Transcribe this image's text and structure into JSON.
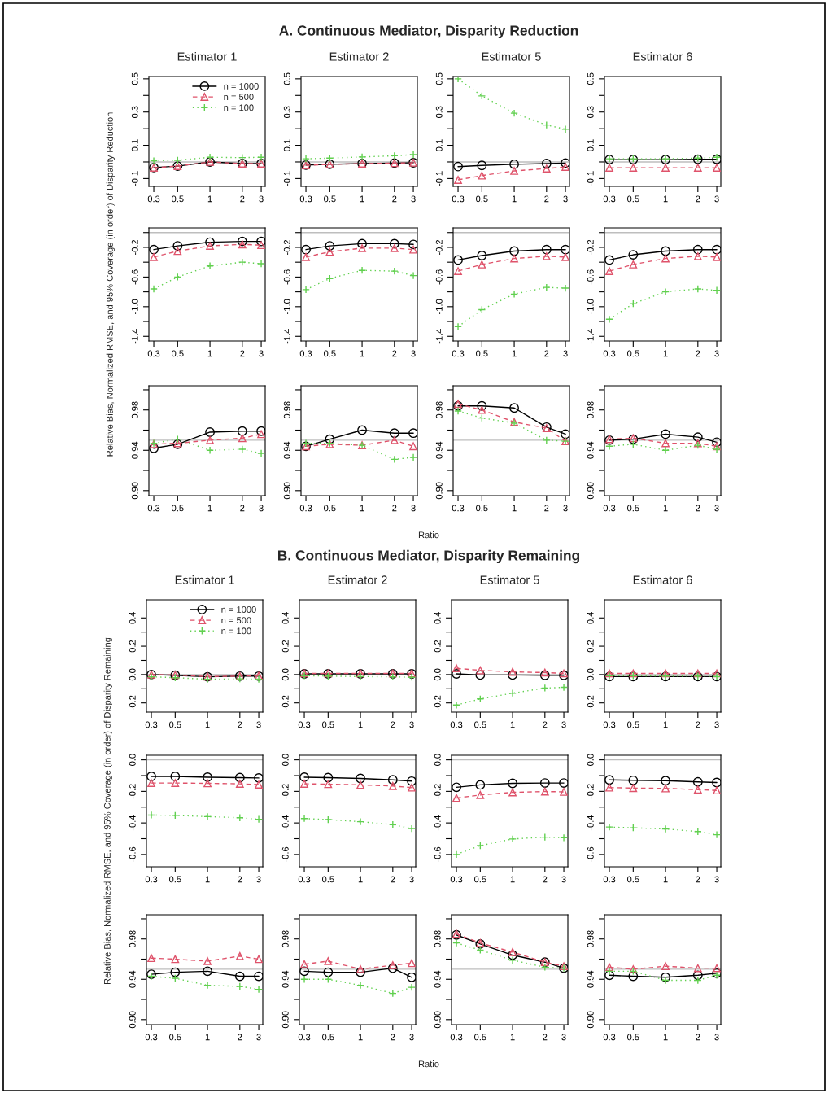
{
  "chart_data": [
    {
      "type": "line",
      "title": "Estimator 1",
      "annotations": [
        "A. Continuous Mediator, Disparity Reduction"
      ],
      "legend": "top right",
      "log": "x",
      "x": [
        0.3,
        0.5,
        1,
        2,
        3
      ],
      "xlim": [
        0.27,
        3.27
      ],
      "xticks": [
        0.3,
        0.5,
        1,
        2,
        3
      ],
      "ylim": [
        -0.147,
        0.514
      ],
      "yticks": [
        -0.1,
        {
          "value": 0,
          "label": null
        },
        0.1,
        {
          "value": 0.2,
          "label": null
        },
        0.3,
        {
          "value": 0.4,
          "label": null
        },
        0.5
      ],
      "ref_lines": [
        {
          "axis": "y",
          "value": 0,
          "color": "#bebebe"
        }
      ],
      "series": [
        {
          "name": "n = 1000",
          "color": "#000000",
          "marker": "circle",
          "line_style": "solid",
          "values": [
            -0.034,
            -0.025,
            0,
            -0.01,
            -0.01
          ]
        },
        {
          "name": "n = 500",
          "color": "#df536b",
          "marker": "triangle",
          "line_style": "dashed",
          "values": [
            -0.035,
            -0.025,
            0,
            -0.01,
            -0.01
          ]
        },
        {
          "name": "n = 100",
          "color": "#61d04f",
          "marker": "cross",
          "line_style": "dotted",
          "values": [
            0.007,
            0.01,
            0.028,
            0.026,
            0.028
          ]
        }
      ]
    },
    {
      "type": "line",
      "title": "Estimator 2",
      "log": "x",
      "x": [
        0.3,
        0.5,
        1,
        2,
        3
      ],
      "xlim": [
        0.27,
        3.27
      ],
      "xticks": [
        0.3,
        0.5,
        1,
        2,
        3
      ],
      "ylim": [
        -0.147,
        0.514
      ],
      "yticks": [
        -0.1,
        {
          "value": 0,
          "label": null
        },
        0.1,
        {
          "value": 0.2,
          "label": null
        },
        0.3,
        {
          "value": 0.4,
          "label": null
        },
        0.5
      ],
      "ref_lines": [
        {
          "axis": "y",
          "value": 0,
          "color": "#bebebe"
        }
      ],
      "series": [
        {
          "color": "#000000",
          "marker": "circle",
          "line_style": "solid",
          "values": [
            -0.019,
            -0.014,
            -0.01,
            -0.007,
            -0.005
          ]
        },
        {
          "color": "#df536b",
          "marker": "triangle",
          "line_style": "dashed",
          "values": [
            -0.02,
            -0.015,
            -0.01,
            -0.007,
            -0.005
          ]
        },
        {
          "color": "#61d04f",
          "marker": "cross",
          "line_style": "dotted",
          "values": [
            0.019,
            0.023,
            0.03,
            0.037,
            0.044
          ]
        }
      ]
    },
    {
      "type": "line",
      "title": "Estimator 5",
      "log": "x",
      "x": [
        0.3,
        0.5,
        1,
        2,
        3
      ],
      "xlim": [
        0.27,
        3.27
      ],
      "xticks": [
        0.3,
        0.5,
        1,
        2,
        3
      ],
      "ylim": [
        -0.147,
        0.514
      ],
      "yticks": [
        -0.1,
        {
          "value": 0,
          "label": null
        },
        0.1,
        {
          "value": 0.2,
          "label": null
        },
        0.3,
        {
          "value": 0.4,
          "label": null
        },
        0.5
      ],
      "ref_lines": [
        {
          "axis": "y",
          "value": 0,
          "color": "#bebebe"
        }
      ],
      "series": [
        {
          "color": "#000000",
          "marker": "circle",
          "line_style": "solid",
          "values": [
            -0.028,
            -0.021,
            -0.014,
            -0.01,
            -0.007
          ]
        },
        {
          "color": "#df536b",
          "marker": "triangle",
          "line_style": "dashed",
          "values": [
            -0.108,
            -0.082,
            -0.054,
            -0.04,
            -0.03
          ]
        },
        {
          "color": "#61d04f",
          "marker": "cross",
          "line_style": "dotted",
          "values": [
            0.5,
            0.397,
            0.293,
            0.222,
            0.197
          ]
        }
      ]
    },
    {
      "type": "line",
      "title": "Estimator 6",
      "log": "x",
      "x": [
        0.3,
        0.5,
        1,
        2,
        3
      ],
      "xlim": [
        0.27,
        3.27
      ],
      "xticks": [
        0.3,
        0.5,
        1,
        2,
        3
      ],
      "ylim": [
        -0.147,
        0.514
      ],
      "yticks": [
        -0.1,
        {
          "value": 0,
          "label": null
        },
        0.1,
        {
          "value": 0.2,
          "label": null
        },
        0.3,
        {
          "value": 0.4,
          "label": null
        },
        0.5
      ],
      "ref_lines": [
        {
          "axis": "y",
          "value": 0,
          "color": "#bebebe"
        }
      ],
      "series": [
        {
          "color": "#000000",
          "marker": "circle",
          "line_style": "solid",
          "values": [
            0.014,
            0.014,
            0.014,
            0.016,
            0.016
          ]
        },
        {
          "color": "#df536b",
          "marker": "triangle",
          "line_style": "dashed",
          "values": [
            -0.035,
            -0.035,
            -0.035,
            -0.035,
            -0.035
          ]
        },
        {
          "color": "#61d04f",
          "marker": "cross",
          "line_style": "dotted",
          "values": [
            0.019,
            0.019,
            0.019,
            0.023,
            0.028
          ]
        }
      ]
    },
    {
      "type": "line",
      "ylabel": "Relative Bias, Normalized RMSE, and 95% Coverage (in order) of Disparity Reduction",
      "log": "x",
      "x": [
        0.3,
        0.5,
        1,
        2,
        3
      ],
      "xlim": [
        0.27,
        3.27
      ],
      "xticks": [
        0.3,
        0.5,
        1,
        2,
        3
      ],
      "ylim": [
        -1.463,
        0.063
      ],
      "yticks": [
        -1.4,
        {
          "value": -1.2,
          "label": null
        },
        {
          "value": -1.0,
          "label": "-1.0"
        },
        {
          "value": -0.8,
          "label": null
        },
        -0.6,
        {
          "value": -0.4,
          "label": null
        },
        -0.2,
        {
          "value": 0,
          "label": null
        }
      ],
      "ref_lines": [
        {
          "axis": "y",
          "value": 0,
          "color": "#bebebe"
        }
      ],
      "series": [
        {
          "color": "#000000",
          "marker": "circle",
          "line_style": "solid",
          "values": [
            -0.23,
            -0.18,
            -0.13,
            -0.12,
            -0.12
          ]
        },
        {
          "color": "#df536b",
          "marker": "triangle",
          "line_style": "dashed",
          "values": [
            -0.33,
            -0.25,
            -0.18,
            -0.16,
            -0.17
          ]
        },
        {
          "color": "#61d04f",
          "marker": "cross",
          "line_style": "dotted",
          "values": [
            -0.76,
            -0.6,
            -0.45,
            -0.4,
            -0.42
          ]
        }
      ]
    },
    {
      "type": "line",
      "log": "x",
      "x": [
        0.3,
        0.5,
        1,
        2,
        3
      ],
      "xlim": [
        0.27,
        3.27
      ],
      "xticks": [
        0.3,
        0.5,
        1,
        2,
        3
      ],
      "ylim": [
        -1.463,
        0.063
      ],
      "yticks": [
        -1.4,
        {
          "value": -1.2,
          "label": null
        },
        {
          "value": -1.0,
          "label": "-1.0"
        },
        {
          "value": -0.8,
          "label": null
        },
        -0.6,
        {
          "value": -0.4,
          "label": null
        },
        -0.2,
        {
          "value": 0,
          "label": null
        }
      ],
      "ref_lines": [
        {
          "axis": "y",
          "value": 0,
          "color": "#bebebe"
        }
      ],
      "series": [
        {
          "color": "#000000",
          "marker": "circle",
          "line_style": "solid",
          "values": [
            -0.23,
            -0.18,
            -0.15,
            -0.15,
            -0.16
          ]
        },
        {
          "color": "#df536b",
          "marker": "triangle",
          "line_style": "dashed",
          "values": [
            -0.33,
            -0.26,
            -0.21,
            -0.21,
            -0.23
          ]
        },
        {
          "color": "#61d04f",
          "marker": "cross",
          "line_style": "dotted",
          "values": [
            -0.77,
            -0.62,
            -0.51,
            -0.52,
            -0.58
          ]
        }
      ]
    },
    {
      "type": "line",
      "log": "x",
      "x": [
        0.3,
        0.5,
        1,
        2,
        3
      ],
      "xlim": [
        0.27,
        3.27
      ],
      "xticks": [
        0.3,
        0.5,
        1,
        2,
        3
      ],
      "ylim": [
        -1.463,
        0.063
      ],
      "yticks": [
        -1.4,
        {
          "value": -1.2,
          "label": null
        },
        {
          "value": -1.0,
          "label": "-1.0"
        },
        {
          "value": -0.8,
          "label": null
        },
        -0.6,
        {
          "value": -0.4,
          "label": null
        },
        -0.2,
        {
          "value": 0,
          "label": null
        }
      ],
      "ref_lines": [
        {
          "axis": "y",
          "value": 0,
          "color": "#bebebe"
        }
      ],
      "series": [
        {
          "color": "#000000",
          "marker": "circle",
          "line_style": "solid",
          "values": [
            -0.37,
            -0.31,
            -0.25,
            -0.23,
            -0.23
          ]
        },
        {
          "color": "#df536b",
          "marker": "triangle",
          "line_style": "dashed",
          "values": [
            -0.52,
            -0.43,
            -0.35,
            -0.32,
            -0.33
          ]
        },
        {
          "color": "#61d04f",
          "marker": "cross",
          "line_style": "dotted",
          "values": [
            -1.27,
            -1.04,
            -0.83,
            -0.74,
            -0.75
          ]
        }
      ]
    },
    {
      "type": "line",
      "log": "x",
      "x": [
        0.3,
        0.5,
        1,
        2,
        3
      ],
      "xlim": [
        0.27,
        3.27
      ],
      "xticks": [
        0.3,
        0.5,
        1,
        2,
        3
      ],
      "ylim": [
        -1.463,
        0.063
      ],
      "yticks": [
        -1.4,
        {
          "value": -1.2,
          "label": null
        },
        {
          "value": -1.0,
          "label": "-1.0"
        },
        {
          "value": -0.8,
          "label": null
        },
        -0.6,
        {
          "value": -0.4,
          "label": null
        },
        -0.2,
        {
          "value": 0,
          "label": null
        }
      ],
      "ref_lines": [
        {
          "axis": "y",
          "value": 0,
          "color": "#bebebe"
        }
      ],
      "series": [
        {
          "color": "#000000",
          "marker": "circle",
          "line_style": "solid",
          "values": [
            -0.37,
            -0.3,
            -0.25,
            -0.23,
            -0.23
          ]
        },
        {
          "color": "#df536b",
          "marker": "triangle",
          "line_style": "dashed",
          "values": [
            -0.52,
            -0.43,
            -0.35,
            -0.32,
            -0.33
          ]
        },
        {
          "color": "#61d04f",
          "marker": "cross",
          "line_style": "dotted",
          "values": [
            -1.17,
            -0.96,
            -0.8,
            -0.76,
            -0.78
          ]
        }
      ]
    },
    {
      "type": "line",
      "log": "x",
      "x": [
        0.3,
        0.5,
        1,
        2,
        3
      ],
      "xlim": [
        0.27,
        3.27
      ],
      "xticks": [
        0.3,
        0.5,
        1,
        2,
        3
      ],
      "ylim": [
        0.895,
        1.004
      ],
      "yticks": [
        {
          "value": 0.9,
          "label": "0.90"
        },
        {
          "value": 0.92,
          "label": null
        },
        0.94,
        {
          "value": 0.96,
          "label": null
        },
        0.98,
        {
          "value": 1.0,
          "label": null
        }
      ],
      "ref_lines": [
        {
          "axis": "y",
          "value": 0.95,
          "color": "#bebebe"
        }
      ],
      "series": [
        {
          "color": "#000000",
          "marker": "circle",
          "line_style": "solid",
          "values": [
            0.942,
            0.946,
            0.958,
            0.959,
            0.959
          ]
        },
        {
          "color": "#df536b",
          "marker": "triangle",
          "line_style": "dashed",
          "values": [
            0.946,
            0.947,
            0.95,
            0.952,
            0.956
          ]
        },
        {
          "color": "#61d04f",
          "marker": "cross",
          "line_style": "dotted",
          "values": [
            0.947,
            0.951,
            0.94,
            0.941,
            0.937
          ]
        }
      ]
    },
    {
      "type": "line",
      "xlabel": "Ratio",
      "log": "x",
      "x": [
        0.3,
        0.5,
        1,
        2,
        3
      ],
      "xlim": [
        0.27,
        3.27
      ],
      "xticks": [
        0.3,
        0.5,
        1,
        2,
        3
      ],
      "ylim": [
        0.895,
        1.004
      ],
      "yticks": [
        {
          "value": 0.9,
          "label": "0.90"
        },
        {
          "value": 0.92,
          "label": null
        },
        0.94,
        {
          "value": 0.96,
          "label": null
        },
        0.98,
        {
          "value": 1.0,
          "label": null
        }
      ],
      "ref_lines": [
        {
          "axis": "y",
          "value": 0.95,
          "color": "#bebebe"
        }
      ],
      "series": [
        {
          "color": "#000000",
          "marker": "circle",
          "line_style": "solid",
          "values": [
            0.944,
            0.951,
            0.96,
            0.957,
            0.957
          ]
        },
        {
          "color": "#df536b",
          "marker": "triangle",
          "line_style": "dashed",
          "values": [
            0.944,
            0.946,
            0.945,
            0.95,
            0.944
          ]
        },
        {
          "color": "#61d04f",
          "marker": "cross",
          "line_style": "dotted",
          "values": [
            0.947,
            0.947,
            0.945,
            0.931,
            0.933
          ]
        }
      ]
    },
    {
      "type": "line",
      "log": "x",
      "x": [
        0.3,
        0.5,
        1,
        2,
        3
      ],
      "xlim": [
        0.27,
        3.27
      ],
      "xticks": [
        0.3,
        0.5,
        1,
        2,
        3
      ],
      "ylim": [
        0.895,
        1.004
      ],
      "yticks": [
        {
          "value": 0.9,
          "label": "0.90"
        },
        {
          "value": 0.92,
          "label": null
        },
        0.94,
        {
          "value": 0.96,
          "label": null
        },
        0.98,
        {
          "value": 1.0,
          "label": null
        }
      ],
      "ref_lines": [
        {
          "axis": "y",
          "value": 0.95,
          "color": "#bebebe"
        }
      ],
      "series": [
        {
          "color": "#000000",
          "marker": "circle",
          "line_style": "solid",
          "values": [
            0.984,
            0.984,
            0.982,
            0.963,
            0.956
          ]
        },
        {
          "color": "#df536b",
          "marker": "triangle",
          "line_style": "dashed",
          "values": [
            0.986,
            0.98,
            0.968,
            0.962,
            0.949
          ]
        },
        {
          "color": "#61d04f",
          "marker": "cross",
          "line_style": "dotted",
          "values": [
            0.979,
            0.972,
            0.967,
            0.95,
            0.949
          ]
        }
      ]
    },
    {
      "type": "line",
      "log": "x",
      "x": [
        0.3,
        0.5,
        1,
        2,
        3
      ],
      "xlim": [
        0.27,
        3.27
      ],
      "xticks": [
        0.3,
        0.5,
        1,
        2,
        3
      ],
      "ylim": [
        0.895,
        1.004
      ],
      "yticks": [
        {
          "value": 0.9,
          "label": "0.90"
        },
        {
          "value": 0.92,
          "label": null
        },
        0.94,
        {
          "value": 0.96,
          "label": null
        },
        0.98,
        {
          "value": 1.0,
          "label": null
        }
      ],
      "ref_lines": [
        {
          "axis": "y",
          "value": 0.95,
          "color": "#bebebe"
        }
      ],
      "series": [
        {
          "color": "#000000",
          "marker": "circle",
          "line_style": "solid",
          "values": [
            0.95,
            0.951,
            0.956,
            0.953,
            0.948
          ]
        },
        {
          "color": "#df536b",
          "marker": "triangle",
          "line_style": "dashed",
          "values": [
            0.951,
            0.952,
            0.947,
            0.947,
            0.944
          ]
        },
        {
          "color": "#61d04f",
          "marker": "cross",
          "line_style": "dotted",
          "values": [
            0.944,
            0.946,
            0.94,
            0.945,
            0.941
          ]
        }
      ]
    },
    {
      "type": "line",
      "title": "Estimator 1",
      "annotations": [
        "B. Continuous Mediator, Disparity Remaining"
      ],
      "legend": "top right",
      "log": "x",
      "x": [
        0.3,
        0.5,
        1,
        2,
        3
      ],
      "xlim": [
        0.27,
        3.27
      ],
      "xticks": [
        0.3,
        0.5,
        1,
        2,
        3
      ],
      "ylim": [
        -0.265,
        0.528
      ],
      "yticks": [
        -0.2,
        {
          "value": -0.1,
          "label": null
        },
        {
          "value": 0,
          "label": "0.0"
        },
        {
          "value": 0.1,
          "label": null
        },
        0.2,
        {
          "value": 0.3,
          "label": null
        },
        0.4
      ],
      "ref_lines": [
        {
          "axis": "y",
          "value": 0,
          "color": "#bebebe"
        }
      ],
      "series": [
        {
          "name": "n = 1000",
          "color": "#000000",
          "marker": "circle",
          "line_style": "solid",
          "values": [
            0,
            -0.005,
            -0.016,
            -0.011,
            -0.011
          ]
        },
        {
          "name": "n = 500",
          "color": "#df536b",
          "marker": "triangle",
          "line_style": "dashed",
          "values": [
            0,
            -0.003,
            -0.014,
            -0.011,
            -0.008
          ]
        },
        {
          "name": "n = 100",
          "color": "#61d04f",
          "marker": "cross",
          "line_style": "dotted",
          "values": [
            -0.016,
            -0.022,
            -0.033,
            -0.03,
            -0.033
          ]
        }
      ]
    },
    {
      "type": "line",
      "title": "Estimator 2",
      "log": "x",
      "x": [
        0.3,
        0.5,
        1,
        2,
        3
      ],
      "xlim": [
        0.27,
        3.27
      ],
      "xticks": [
        0.3,
        0.5,
        1,
        2,
        3
      ],
      "ylim": [
        -0.265,
        0.528
      ],
      "yticks": [
        -0.2,
        {
          "value": -0.1,
          "label": null
        },
        {
          "value": 0,
          "label": "0.0"
        },
        {
          "value": 0.1,
          "label": null
        },
        0.2,
        {
          "value": 0.3,
          "label": null
        },
        0.4
      ],
      "ref_lines": [
        {
          "axis": "y",
          "value": 0,
          "color": "#bebebe"
        }
      ],
      "series": [
        {
          "color": "#000000",
          "marker": "circle",
          "line_style": "solid",
          "values": [
            0.005,
            0.005,
            0.005,
            0.005,
            0.005
          ]
        },
        {
          "color": "#df536b",
          "marker": "triangle",
          "line_style": "dashed",
          "values": [
            0.008,
            0.008,
            0.008,
            0.008,
            0.008
          ]
        },
        {
          "color": "#61d04f",
          "marker": "cross",
          "line_style": "dotted",
          "values": [
            -0.008,
            -0.011,
            -0.014,
            -0.016,
            -0.019
          ]
        }
      ]
    },
    {
      "type": "line",
      "title": "Estimator 5",
      "log": "x",
      "x": [
        0.3,
        0.5,
        1,
        2,
        3
      ],
      "xlim": [
        0.27,
        3.27
      ],
      "xticks": [
        0.3,
        0.5,
        1,
        2,
        3
      ],
      "ylim": [
        -0.265,
        0.528
      ],
      "yticks": [
        -0.2,
        {
          "value": -0.1,
          "label": null
        },
        {
          "value": 0,
          "label": "0.0"
        },
        {
          "value": 0.1,
          "label": null
        },
        0.2,
        {
          "value": 0.3,
          "label": null
        },
        0.4
      ],
      "ref_lines": [
        {
          "axis": "y",
          "value": 0,
          "color": "#bebebe"
        }
      ],
      "series": [
        {
          "color": "#000000",
          "marker": "circle",
          "line_style": "solid",
          "values": [
            0.005,
            -0.003,
            -0.003,
            -0.005,
            -0.005
          ]
        },
        {
          "color": "#df536b",
          "marker": "triangle",
          "line_style": "dashed",
          "values": [
            0.044,
            0.03,
            0.019,
            0.014,
            0.008
          ]
        },
        {
          "color": "#61d04f",
          "marker": "cross",
          "line_style": "dotted",
          "values": [
            -0.215,
            -0.172,
            -0.131,
            -0.095,
            -0.09
          ]
        }
      ]
    },
    {
      "type": "line",
      "title": "Estimator 6",
      "log": "x",
      "x": [
        0.3,
        0.5,
        1,
        2,
        3
      ],
      "xlim": [
        0.27,
        3.27
      ],
      "xticks": [
        0.3,
        0.5,
        1,
        2,
        3
      ],
      "ylim": [
        -0.265,
        0.528
      ],
      "yticks": [
        -0.2,
        {
          "value": -0.1,
          "label": null
        },
        {
          "value": 0,
          "label": "0.0"
        },
        {
          "value": 0.1,
          "label": null
        },
        0.2,
        {
          "value": 0.3,
          "label": null
        },
        0.4
      ],
      "ref_lines": [
        {
          "axis": "y",
          "value": 0,
          "color": "#bebebe"
        }
      ],
      "series": [
        {
          "color": "#000000",
          "marker": "circle",
          "line_style": "solid",
          "values": [
            -0.014,
            -0.014,
            -0.014,
            -0.014,
            -0.014
          ]
        },
        {
          "color": "#df536b",
          "marker": "triangle",
          "line_style": "dashed",
          "values": [
            0.008,
            0.008,
            0.008,
            0.008,
            0.008
          ]
        },
        {
          "color": "#61d04f",
          "marker": "cross",
          "line_style": "dotted",
          "values": [
            -0.008,
            -0.008,
            -0.011,
            -0.011,
            -0.014
          ]
        }
      ]
    },
    {
      "type": "line",
      "ylabel": "Relative Bias, Normalized RMSE, and 95% Coverage (in order) of Disparity Remaining",
      "log": "x",
      "x": [
        0.3,
        0.5,
        1,
        2,
        3
      ],
      "xlim": [
        0.27,
        3.27
      ],
      "xticks": [
        0.3,
        0.5,
        1,
        2,
        3
      ],
      "ylim": [
        -0.678,
        0.029
      ],
      "yticks": [
        -0.6,
        {
          "value": -0.5,
          "label": null
        },
        -0.4,
        {
          "value": -0.3,
          "label": null
        },
        -0.2,
        {
          "value": -0.1,
          "label": null
        },
        {
          "value": 0,
          "label": "0.0"
        }
      ],
      "ref_lines": [
        {
          "axis": "y",
          "value": 0,
          "color": "#bebebe"
        }
      ],
      "series": [
        {
          "color": "#000000",
          "marker": "circle",
          "line_style": "solid",
          "values": [
            -0.105,
            -0.105,
            -0.11,
            -0.113,
            -0.115
          ]
        },
        {
          "color": "#df536b",
          "marker": "triangle",
          "line_style": "dashed",
          "values": [
            -0.147,
            -0.147,
            -0.149,
            -0.152,
            -0.157
          ]
        },
        {
          "color": "#61d04f",
          "marker": "cross",
          "line_style": "dotted",
          "values": [
            -0.35,
            -0.352,
            -0.36,
            -0.367,
            -0.377
          ]
        }
      ]
    },
    {
      "type": "line",
      "log": "x",
      "x": [
        0.3,
        0.5,
        1,
        2,
        3
      ],
      "xlim": [
        0.27,
        3.27
      ],
      "xticks": [
        0.3,
        0.5,
        1,
        2,
        3
      ],
      "ylim": [
        -0.678,
        0.029
      ],
      "yticks": [
        -0.6,
        {
          "value": -0.5,
          "label": null
        },
        -0.4,
        {
          "value": -0.3,
          "label": null
        },
        -0.2,
        {
          "value": -0.1,
          "label": null
        },
        {
          "value": 0,
          "label": "0.0"
        }
      ],
      "ref_lines": [
        {
          "axis": "y",
          "value": 0,
          "color": "#bebebe"
        }
      ],
      "series": [
        {
          "color": "#000000",
          "marker": "circle",
          "line_style": "solid",
          "values": [
            -0.11,
            -0.113,
            -0.118,
            -0.127,
            -0.135
          ]
        },
        {
          "color": "#df536b",
          "marker": "triangle",
          "line_style": "dashed",
          "values": [
            -0.152,
            -0.154,
            -0.159,
            -0.166,
            -0.176
          ]
        },
        {
          "color": "#61d04f",
          "marker": "cross",
          "line_style": "dotted",
          "values": [
            -0.372,
            -0.379,
            -0.392,
            -0.411,
            -0.436
          ]
        }
      ]
    },
    {
      "type": "line",
      "log": "x",
      "x": [
        0.3,
        0.5,
        1,
        2,
        3
      ],
      "xlim": [
        0.27,
        3.27
      ],
      "xticks": [
        0.3,
        0.5,
        1,
        2,
        3
      ],
      "ylim": [
        -0.678,
        0.029
      ],
      "yticks": [
        -0.6,
        {
          "value": -0.5,
          "label": null
        },
        -0.4,
        {
          "value": -0.3,
          "label": null
        },
        -0.2,
        {
          "value": -0.1,
          "label": null
        },
        {
          "value": 0,
          "label": "0.0"
        }
      ],
      "ref_lines": [
        {
          "axis": "y",
          "value": 0,
          "color": "#bebebe"
        }
      ],
      "series": [
        {
          "color": "#000000",
          "marker": "circle",
          "line_style": "solid",
          "values": [
            -0.174,
            -0.159,
            -0.149,
            -0.147,
            -0.147
          ]
        },
        {
          "color": "#df536b",
          "marker": "triangle",
          "line_style": "dashed",
          "values": [
            -0.242,
            -0.223,
            -0.206,
            -0.201,
            -0.203
          ]
        },
        {
          "color": "#61d04f",
          "marker": "cross",
          "line_style": "dotted",
          "values": [
            -0.6,
            -0.544,
            -0.502,
            -0.49,
            -0.494
          ]
        }
      ]
    },
    {
      "type": "line",
      "log": "x",
      "x": [
        0.3,
        0.5,
        1,
        2,
        3
      ],
      "xlim": [
        0.27,
        3.27
      ],
      "xticks": [
        0.3,
        0.5,
        1,
        2,
        3
      ],
      "ylim": [
        -0.678,
        0.029
      ],
      "yticks": [
        -0.6,
        {
          "value": -0.5,
          "label": null
        },
        -0.4,
        {
          "value": -0.3,
          "label": null
        },
        -0.2,
        {
          "value": -0.1,
          "label": null
        },
        {
          "value": 0,
          "label": "0.0"
        }
      ],
      "ref_lines": [
        {
          "axis": "y",
          "value": 0,
          "color": "#bebebe"
        }
      ],
      "series": [
        {
          "color": "#000000",
          "marker": "circle",
          "line_style": "solid",
          "values": [
            -0.127,
            -0.13,
            -0.132,
            -0.14,
            -0.144
          ]
        },
        {
          "color": "#df536b",
          "marker": "triangle",
          "line_style": "dashed",
          "values": [
            -0.176,
            -0.179,
            -0.181,
            -0.189,
            -0.194
          ]
        },
        {
          "color": "#61d04f",
          "marker": "cross",
          "line_style": "dotted",
          "values": [
            -0.426,
            -0.431,
            -0.438,
            -0.455,
            -0.475
          ]
        }
      ]
    },
    {
      "type": "line",
      "log": "x",
      "x": [
        0.3,
        0.5,
        1,
        2,
        3
      ],
      "xlim": [
        0.27,
        3.27
      ],
      "xticks": [
        0.3,
        0.5,
        1,
        2,
        3
      ],
      "ylim": [
        0.895,
        1.004
      ],
      "yticks": [
        {
          "value": 0.9,
          "label": "0.90"
        },
        {
          "value": 0.92,
          "label": null
        },
        0.94,
        {
          "value": 0.96,
          "label": null
        },
        0.98,
        {
          "value": 1.0,
          "label": null
        }
      ],
      "ref_lines": [
        {
          "axis": "y",
          "value": 0.95,
          "color": "#bebebe"
        }
      ],
      "series": [
        {
          "color": "#000000",
          "marker": "circle",
          "line_style": "solid",
          "values": [
            0.945,
            0.947,
            0.948,
            0.943,
            0.943
          ]
        },
        {
          "color": "#df536b",
          "marker": "triangle",
          "line_style": "dashed",
          "values": [
            0.961,
            0.96,
            0.958,
            0.963,
            0.96
          ]
        },
        {
          "color": "#61d04f",
          "marker": "cross",
          "line_style": "dotted",
          "values": [
            0.943,
            0.941,
            0.934,
            0.933,
            0.93
          ]
        }
      ]
    },
    {
      "type": "line",
      "xlabel": "Ratio",
      "log": "x",
      "x": [
        0.3,
        0.5,
        1,
        2,
        3
      ],
      "xlim": [
        0.27,
        3.27
      ],
      "xticks": [
        0.3,
        0.5,
        1,
        2,
        3
      ],
      "ylim": [
        0.895,
        1.004
      ],
      "yticks": [
        {
          "value": 0.9,
          "label": "0.90"
        },
        {
          "value": 0.92,
          "label": null
        },
        0.94,
        {
          "value": 0.96,
          "label": null
        },
        0.98,
        {
          "value": 1.0,
          "label": null
        }
      ],
      "ref_lines": [
        {
          "axis": "y",
          "value": 0.95,
          "color": "#bebebe"
        }
      ],
      "series": [
        {
          "color": "#000000",
          "marker": "circle",
          "line_style": "solid",
          "values": [
            0.948,
            0.947,
            0.947,
            0.951,
            0.942
          ]
        },
        {
          "color": "#df536b",
          "marker": "triangle",
          "line_style": "dashed",
          "values": [
            0.955,
            0.958,
            0.95,
            0.954,
            0.956
          ]
        },
        {
          "color": "#61d04f",
          "marker": "cross",
          "line_style": "dotted",
          "values": [
            0.94,
            0.94,
            0.934,
            0.926,
            0.932
          ]
        }
      ]
    },
    {
      "type": "line",
      "log": "x",
      "x": [
        0.3,
        0.5,
        1,
        2,
        3
      ],
      "xlim": [
        0.27,
        3.27
      ],
      "xticks": [
        0.3,
        0.5,
        1,
        2,
        3
      ],
      "ylim": [
        0.895,
        1.004
      ],
      "yticks": [
        {
          "value": 0.9,
          "label": "0.90"
        },
        {
          "value": 0.92,
          "label": null
        },
        0.94,
        {
          "value": 0.96,
          "label": null
        },
        0.98,
        {
          "value": 1.0,
          "label": null
        }
      ],
      "ref_lines": [
        {
          "axis": "y",
          "value": 0.95,
          "color": "#bebebe"
        }
      ],
      "series": [
        {
          "color": "#000000",
          "marker": "circle",
          "line_style": "solid",
          "values": [
            0.984,
            0.975,
            0.964,
            0.957,
            0.951
          ]
        },
        {
          "color": "#df536b",
          "marker": "triangle",
          "line_style": "dashed",
          "values": [
            0.985,
            0.976,
            0.967,
            0.957,
            0.953
          ]
        },
        {
          "color": "#61d04f",
          "marker": "cross",
          "line_style": "dotted",
          "values": [
            0.976,
            0.969,
            0.959,
            0.952,
            0.951
          ]
        }
      ]
    },
    {
      "type": "line",
      "log": "x",
      "x": [
        0.3,
        0.5,
        1,
        2,
        3
      ],
      "xlim": [
        0.27,
        3.27
      ],
      "xticks": [
        0.3,
        0.5,
        1,
        2,
        3
      ],
      "ylim": [
        0.895,
        1.004
      ],
      "yticks": [
        {
          "value": 0.9,
          "label": "0.90"
        },
        {
          "value": 0.92,
          "label": null
        },
        0.94,
        {
          "value": 0.96,
          "label": null
        },
        0.98,
        {
          "value": 1.0,
          "label": null
        }
      ],
      "ref_lines": [
        {
          "axis": "y",
          "value": 0.95,
          "color": "#bebebe"
        }
      ],
      "series": [
        {
          "color": "#000000",
          "marker": "circle",
          "line_style": "solid",
          "values": [
            0.944,
            0.943,
            0.942,
            0.944,
            0.946
          ]
        },
        {
          "color": "#df536b",
          "marker": "triangle",
          "line_style": "dashed",
          "values": [
            0.952,
            0.95,
            0.953,
            0.951,
            0.951
          ]
        },
        {
          "color": "#61d04f",
          "marker": "cross",
          "line_style": "dotted",
          "values": [
            0.948,
            0.948,
            0.939,
            0.939,
            0.944
          ]
        }
      ]
    }
  ]
}
